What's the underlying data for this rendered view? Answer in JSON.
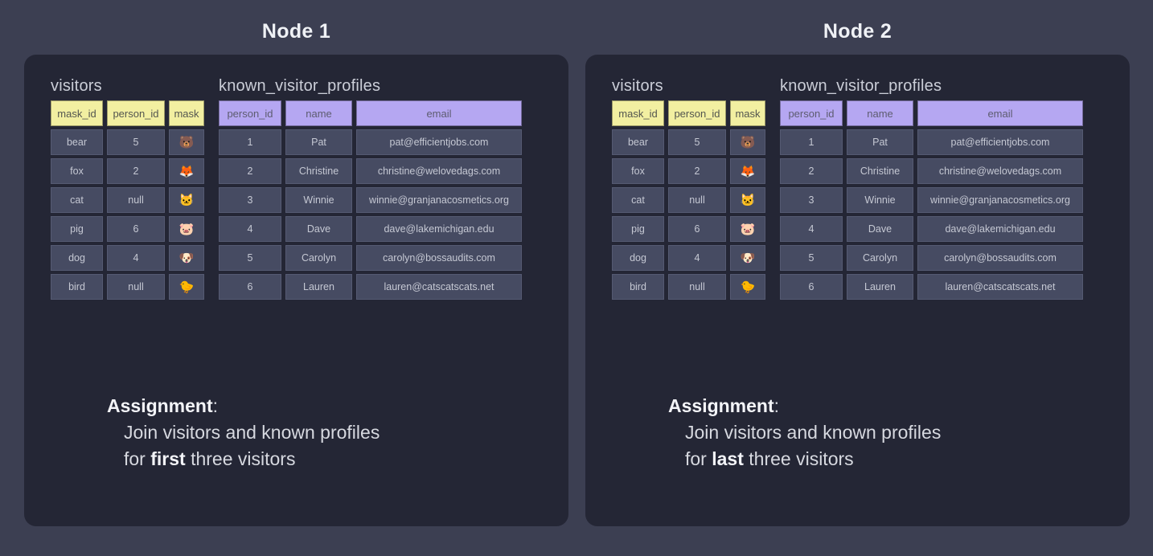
{
  "colors": {
    "page_bg": "#3c3f52",
    "panel_bg": "#242635",
    "header_yellow": "#f2efa1",
    "header_purple": "#b5a7f2",
    "cell_bg": "#464b62"
  },
  "nodes": [
    {
      "title": "Node 1",
      "tables": [
        {
          "name": "visitors",
          "columns": [
            "mask_id",
            "person_id",
            "mask"
          ],
          "rows": [
            [
              "bear",
              "5",
              "🐻"
            ],
            [
              "fox",
              "2",
              "🦊"
            ],
            [
              "cat",
              "null",
              "🐱"
            ],
            [
              "pig",
              "6",
              "🐷"
            ],
            [
              "dog",
              "4",
              "🐶"
            ],
            [
              "bird",
              "null",
              "🐤"
            ]
          ]
        },
        {
          "name": "known_visitor_profiles",
          "columns": [
            "person_id",
            "name",
            "email"
          ],
          "rows": [
            [
              "1",
              "Pat",
              "pat@efficientjobs.com"
            ],
            [
              "2",
              "Christine",
              "christine@welovedags.com"
            ],
            [
              "3",
              "Winnie",
              "winnie@granjanacosmetics.org"
            ],
            [
              "4",
              "Dave",
              "dave@lakemichigan.edu"
            ],
            [
              "5",
              "Carolyn",
              "carolyn@bossaudits.com"
            ],
            [
              "6",
              "Lauren",
              "lauren@catscatscats.net"
            ]
          ]
        }
      ],
      "assignment": {
        "heading": "Assignment",
        "colon": ":",
        "line1": "Join visitors and known profiles",
        "line2_prefix": "for ",
        "line2_emphasis": "first",
        "line2_suffix": " three visitors"
      }
    },
    {
      "title": "Node 2",
      "tables": [
        {
          "name": "visitors",
          "columns": [
            "mask_id",
            "person_id",
            "mask"
          ],
          "rows": [
            [
              "bear",
              "5",
              "🐻"
            ],
            [
              "fox",
              "2",
              "🦊"
            ],
            [
              "cat",
              "null",
              "🐱"
            ],
            [
              "pig",
              "6",
              "🐷"
            ],
            [
              "dog",
              "4",
              "🐶"
            ],
            [
              "bird",
              "null",
              "🐤"
            ]
          ]
        },
        {
          "name": "known_visitor_profiles",
          "columns": [
            "person_id",
            "name",
            "email"
          ],
          "rows": [
            [
              "1",
              "Pat",
              "pat@efficientjobs.com"
            ],
            [
              "2",
              "Christine",
              "christine@welovedags.com"
            ],
            [
              "3",
              "Winnie",
              "winnie@granjanacosmetics.org"
            ],
            [
              "4",
              "Dave",
              "dave@lakemichigan.edu"
            ],
            [
              "5",
              "Carolyn",
              "carolyn@bossaudits.com"
            ],
            [
              "6",
              "Lauren",
              "lauren@catscatscats.net"
            ]
          ]
        }
      ],
      "assignment": {
        "heading": "Assignment",
        "colon": ":",
        "line1": "Join visitors and known profiles",
        "line2_prefix": "for ",
        "line2_emphasis": "last",
        "line2_suffix": " three visitors"
      }
    }
  ]
}
